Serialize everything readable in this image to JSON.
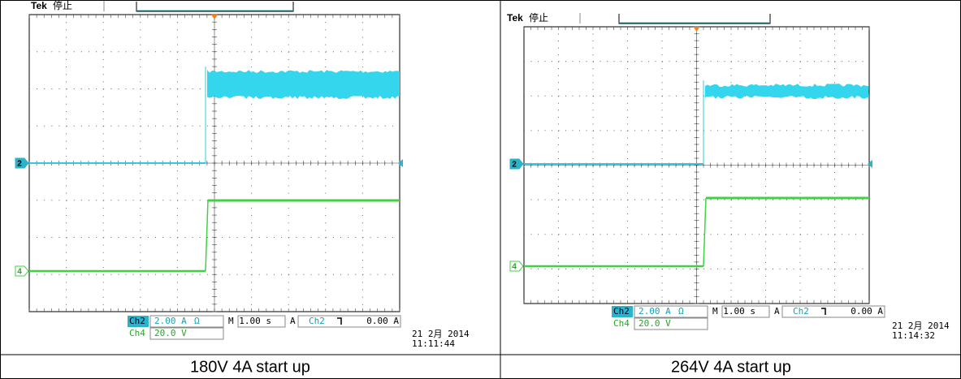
{
  "panels": [
    {
      "brand": "Tek",
      "status": "停止",
      "markers": [
        "2",
        "4"
      ],
      "readout": {
        "ch2_label": "Ch2",
        "ch2_scale": "2.00 A",
        "ch2_icon": "Ω",
        "timebase": "M 1.00 s",
        "trigger_mode": "A",
        "trigger_source": "Ch2",
        "trigger_level": "0.00 A",
        "ch4_label": "Ch4",
        "ch4_scale": "20.0 V"
      },
      "date": "21 2月 2014",
      "time": "11:11:44",
      "caption": "180V 4A start up"
    },
    {
      "brand": "Tek",
      "status": "停止",
      "markers": [
        "2",
        "4"
      ],
      "readout": {
        "ch2_label": "Ch2",
        "ch2_scale": "2.00 A",
        "ch2_icon": "Ω",
        "timebase": "M 1.00 s",
        "trigger_mode": "A",
        "trigger_source": "Ch2",
        "trigger_level": "0.00 A",
        "ch4_label": "Ch4",
        "ch4_scale": "20.0 V"
      },
      "date": "21 2月 2014",
      "time": "11:14:32",
      "caption": "264V 4A start up"
    }
  ]
}
